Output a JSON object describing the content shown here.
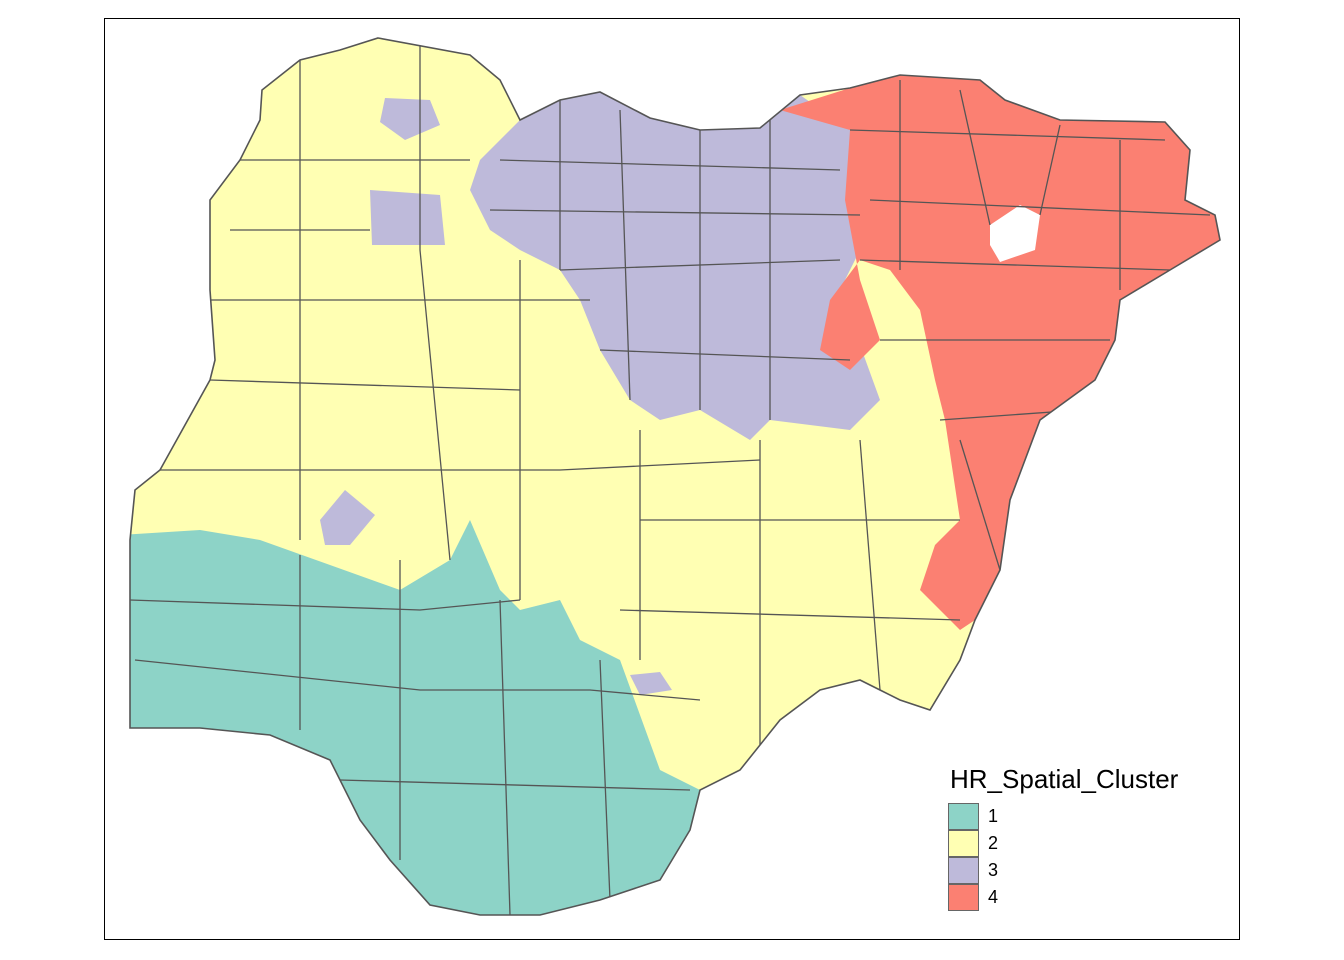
{
  "map": {
    "legend_title": "HR_Spatial_Cluster",
    "boundary_color": "#555555",
    "clusters": [
      {
        "label": "1",
        "color": "#8DD3C7"
      },
      {
        "label": "2",
        "color": "#FFFFB3"
      },
      {
        "label": "3",
        "color": "#BEBADA"
      },
      {
        "label": "4",
        "color": "#FB8072"
      }
    ]
  }
}
